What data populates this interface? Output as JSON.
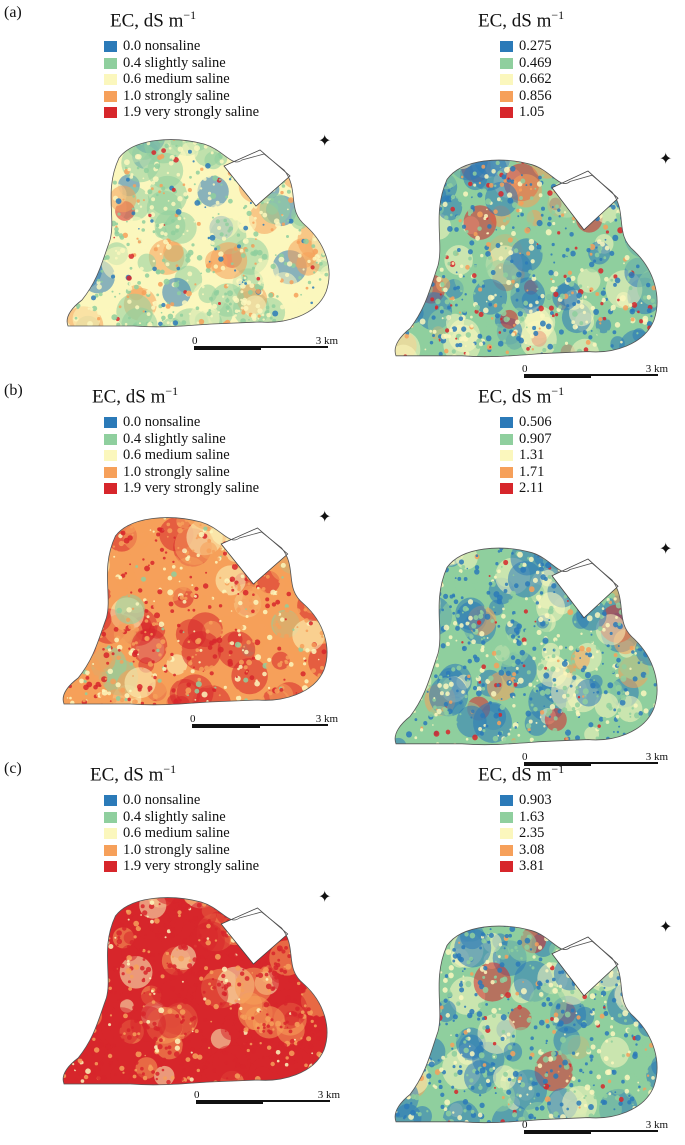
{
  "colors": {
    "c1": "#2b7ab8",
    "c2": "#8fcf9e",
    "c3": "#fbf7bd",
    "c4": "#f6a05a",
    "c5": "#d7262b"
  },
  "panels": [
    {
      "label": "(a)",
      "left": {
        "title": "EC, dS m",
        "sup": "−1",
        "items": [
          "0.0 nonsaline",
          "0.4 slightly saline",
          "0.6 medium saline",
          "1.0 strongly saline",
          "1.9 very strongly saline"
        ],
        "dominant": [
          0.08,
          0.35,
          0.42,
          0.13,
          0.02
        ]
      },
      "right": {
        "title": "EC, dS m",
        "sup": "−1",
        "items": [
          "0.275",
          "0.469",
          "0.662",
          "0.856",
          "1.05"
        ],
        "dominant": [
          0.25,
          0.3,
          0.25,
          0.1,
          0.1
        ]
      },
      "scale": {
        "zero": "0",
        "end": "3 km"
      }
    },
    {
      "label": "(b)",
      "left": {
        "title": "EC, dS m",
        "sup": "−1",
        "items": [
          "0.0 nonsaline",
          "0.4 slightly saline",
          "0.6 medium saline",
          "1.0 strongly saline",
          "1.9 very strongly saline"
        ],
        "dominant": [
          0.0,
          0.05,
          0.2,
          0.5,
          0.25
        ]
      },
      "right": {
        "title": "EC, dS m",
        "sup": "−1",
        "items": [
          "0.506",
          "0.907",
          "1.31",
          "1.71",
          "2.11"
        ],
        "dominant": [
          0.3,
          0.35,
          0.23,
          0.06,
          0.06
        ]
      },
      "scale": {
        "zero": "0",
        "end": "3 km"
      }
    },
    {
      "label": "(c)",
      "left": {
        "title": "EC, dS m",
        "sup": "−1",
        "items": [
          "0.0 nonsaline",
          "0.4 slightly saline",
          "0.6 medium saline",
          "1.0 strongly saline",
          "1.9 very strongly saline"
        ],
        "dominant": [
          0.0,
          0.0,
          0.1,
          0.25,
          0.65
        ]
      },
      "right": {
        "title": "EC, dS m",
        "sup": "−1",
        "items": [
          "0.903",
          "1.63",
          "2.35",
          "3.08",
          "3.81"
        ],
        "dominant": [
          0.33,
          0.35,
          0.22,
          0.05,
          0.05
        ]
      },
      "scale": {
        "zero": "0",
        "end": "3 km"
      }
    }
  ]
}
